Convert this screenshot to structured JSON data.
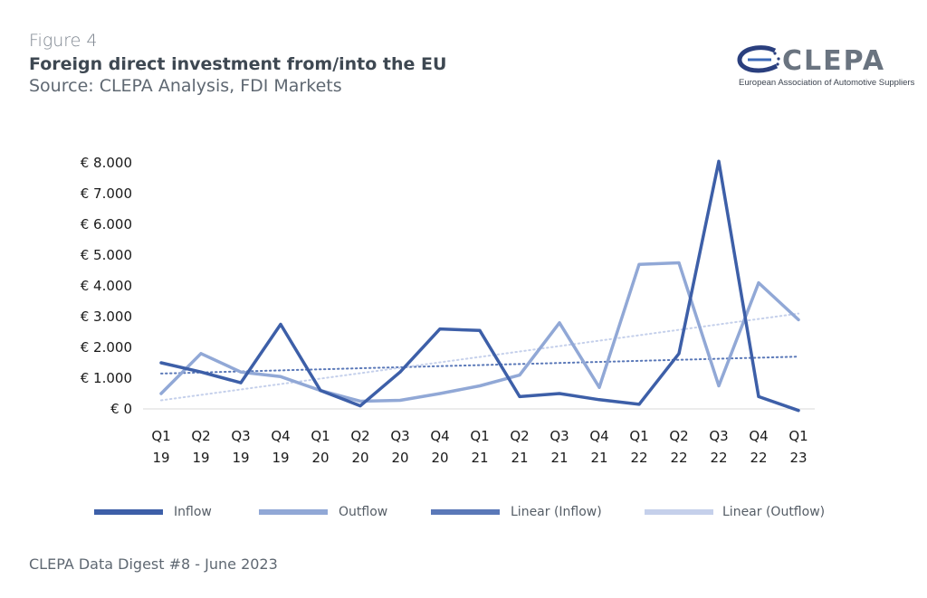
{
  "header": {
    "figure_label": "Figure 4",
    "title": "Foreign direct investment from/into the  EU",
    "source": "Source: CLEPA Analysis, FDI Markets"
  },
  "logo": {
    "name": "CLEPA",
    "subtitle": "European Association of Automotive Suppliers"
  },
  "footer": {
    "text": "CLEPA Data Digest #8 - June 2023"
  },
  "colors": {
    "inflow": "#3d5fa8",
    "outflow": "#91a8d6",
    "linear_inflow": "#5a78b8",
    "linear_outflow": "#c5d0eb",
    "text": "#1a1a1a"
  },
  "chart_data": {
    "type": "line",
    "title": "Foreign direct investment from/into the  EU",
    "x": [
      "Q1 19",
      "Q2 19",
      "Q3 19",
      "Q4 19",
      "Q1 20",
      "Q2 20",
      "Q3 20",
      "Q4 20",
      "Q1 21",
      "Q2 21",
      "Q3 21",
      "Q4 21",
      "Q1 22",
      "Q2 22",
      "Q3 22",
      "Q4 22",
      "Q1 23"
    ],
    "x_tick_labels": [
      [
        "Q1",
        "19"
      ],
      [
        "Q2",
        "19"
      ],
      [
        "Q3",
        "19"
      ],
      [
        "Q4",
        "19"
      ],
      [
        "Q1",
        "20"
      ],
      [
        "Q2",
        "20"
      ],
      [
        "Q3",
        "20"
      ],
      [
        "Q4",
        "20"
      ],
      [
        "Q1",
        "21"
      ],
      [
        "Q2",
        "21"
      ],
      [
        "Q3",
        "21"
      ],
      [
        "Q4",
        "21"
      ],
      [
        "Q1",
        "22"
      ],
      [
        "Q2",
        "22"
      ],
      [
        "Q3",
        "22"
      ],
      [
        "Q4",
        "22"
      ],
      [
        "Q1",
        "23"
      ]
    ],
    "y_ticks": [
      {
        "value": 0,
        "label": "€ 0"
      },
      {
        "value": 1000,
        "label": "€ 1.000"
      },
      {
        "value": 2000,
        "label": "€ 2.000"
      },
      {
        "value": 3000,
        "label": "€ 3.000"
      },
      {
        "value": 4000,
        "label": "€ 4.000"
      },
      {
        "value": 5000,
        "label": "€ 5.000"
      },
      {
        "value": 6000,
        "label": "€ 6.000"
      },
      {
        "value": 7000,
        "label": "€ 7.000"
      },
      {
        "value": 8000,
        "label": "€ 8.000"
      }
    ],
    "ylim": [
      0,
      8000
    ],
    "grid": false,
    "legend_position": "bottom",
    "series": [
      {
        "name": "Inflow",
        "style": "solid",
        "values": [
          1500,
          1200,
          850,
          2750,
          600,
          100,
          1200,
          2600,
          2550,
          400,
          500,
          300,
          150,
          1800,
          8050,
          400,
          -50
        ]
      },
      {
        "name": "Outflow",
        "style": "solid",
        "values": [
          500,
          1800,
          1200,
          1050,
          600,
          250,
          280,
          500,
          750,
          1100,
          2800,
          700,
          4700,
          4750,
          750,
          4100,
          2900
        ]
      }
    ],
    "trendlines": [
      {
        "name": "Linear (Inflow)",
        "style": "dotted",
        "start": 1150,
        "end": 1700
      },
      {
        "name": "Linear (Outflow)",
        "style": "dotted",
        "start": 280,
        "end": 3100
      }
    ]
  }
}
